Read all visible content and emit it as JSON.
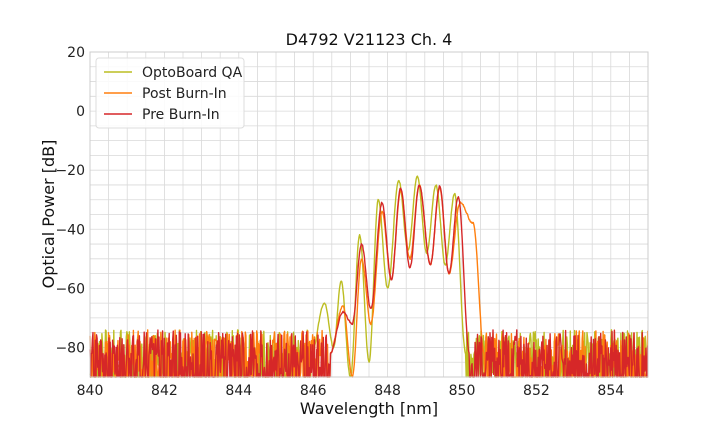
{
  "chart_data": {
    "type": "line",
    "title": "D4792 V21123 Ch. 4",
    "xlabel": "Wavelength [nm]",
    "ylabel": "Optical Power [dB]",
    "xlim": [
      840,
      855
    ],
    "ylim": [
      -90,
      20
    ],
    "x_ticks": [
      840,
      842,
      844,
      846,
      848,
      850,
      852,
      854
    ],
    "y_ticks": [
      20,
      0,
      -20,
      -40,
      -60,
      -80
    ],
    "x_tick_labels": [
      "840",
      "842",
      "844",
      "846",
      "848",
      "850",
      "852",
      "854"
    ],
    "y_tick_labels": [
      "20",
      "0",
      "−20",
      "−40",
      "−60",
      "−80"
    ],
    "grid": true,
    "legend_position": "top-left",
    "noise_floor_dB": -82,
    "series": [
      {
        "name": "OptoBoard QA",
        "color": "#bcbd22",
        "peaks": [
          {
            "x": 846.3,
            "y": -65
          },
          {
            "x": 846.75,
            "y": -57.5
          },
          {
            "x": 847.25,
            "y": -42
          },
          {
            "x": 847.75,
            "y": -30
          },
          {
            "x": 848.3,
            "y": -23.5
          },
          {
            "x": 848.8,
            "y": -22
          },
          {
            "x": 849.3,
            "y": -25
          },
          {
            "x": 849.8,
            "y": -28
          }
        ],
        "valleys": [
          {
            "x": 846.55,
            "y": -80
          },
          {
            "x": 847.0,
            "y": -90
          },
          {
            "x": 847.5,
            "y": -85
          },
          {
            "x": 848.0,
            "y": -60
          },
          {
            "x": 848.55,
            "y": -47
          },
          {
            "x": 849.05,
            "y": -48
          },
          {
            "x": 849.55,
            "y": -52
          }
        ]
      },
      {
        "name": "Post Burn-In",
        "color": "#ff7f0e",
        "peaks": [
          {
            "x": 846.8,
            "y": -66
          },
          {
            "x": 847.3,
            "y": -50
          },
          {
            "x": 847.85,
            "y": -34
          },
          {
            "x": 848.35,
            "y": -27
          },
          {
            "x": 848.85,
            "y": -25
          },
          {
            "x": 849.4,
            "y": -26
          },
          {
            "x": 849.95,
            "y": -31
          },
          {
            "x": 850.3,
            "y": -38
          }
        ],
        "valleys": [
          {
            "x": 847.05,
            "y": -90
          },
          {
            "x": 847.55,
            "y": -72
          },
          {
            "x": 848.1,
            "y": -57
          },
          {
            "x": 848.6,
            "y": -50
          },
          {
            "x": 849.15,
            "y": -52
          },
          {
            "x": 849.65,
            "y": -55
          }
        ]
      },
      {
        "name": "Pre Burn-In",
        "color": "#d62728",
        "peaks": [
          {
            "x": 846.8,
            "y": -68
          },
          {
            "x": 847.3,
            "y": -45
          },
          {
            "x": 847.85,
            "y": -31
          },
          {
            "x": 848.35,
            "y": -26
          },
          {
            "x": 848.85,
            "y": -25
          },
          {
            "x": 849.4,
            "y": -25.5
          },
          {
            "x": 849.9,
            "y": -29
          }
        ],
        "valleys": [
          {
            "x": 847.05,
            "y": -72
          },
          {
            "x": 847.55,
            "y": -67
          },
          {
            "x": 848.1,
            "y": -57
          },
          {
            "x": 848.6,
            "y": -53
          },
          {
            "x": 849.15,
            "y": -52
          },
          {
            "x": 849.65,
            "y": -55
          }
        ]
      }
    ]
  }
}
